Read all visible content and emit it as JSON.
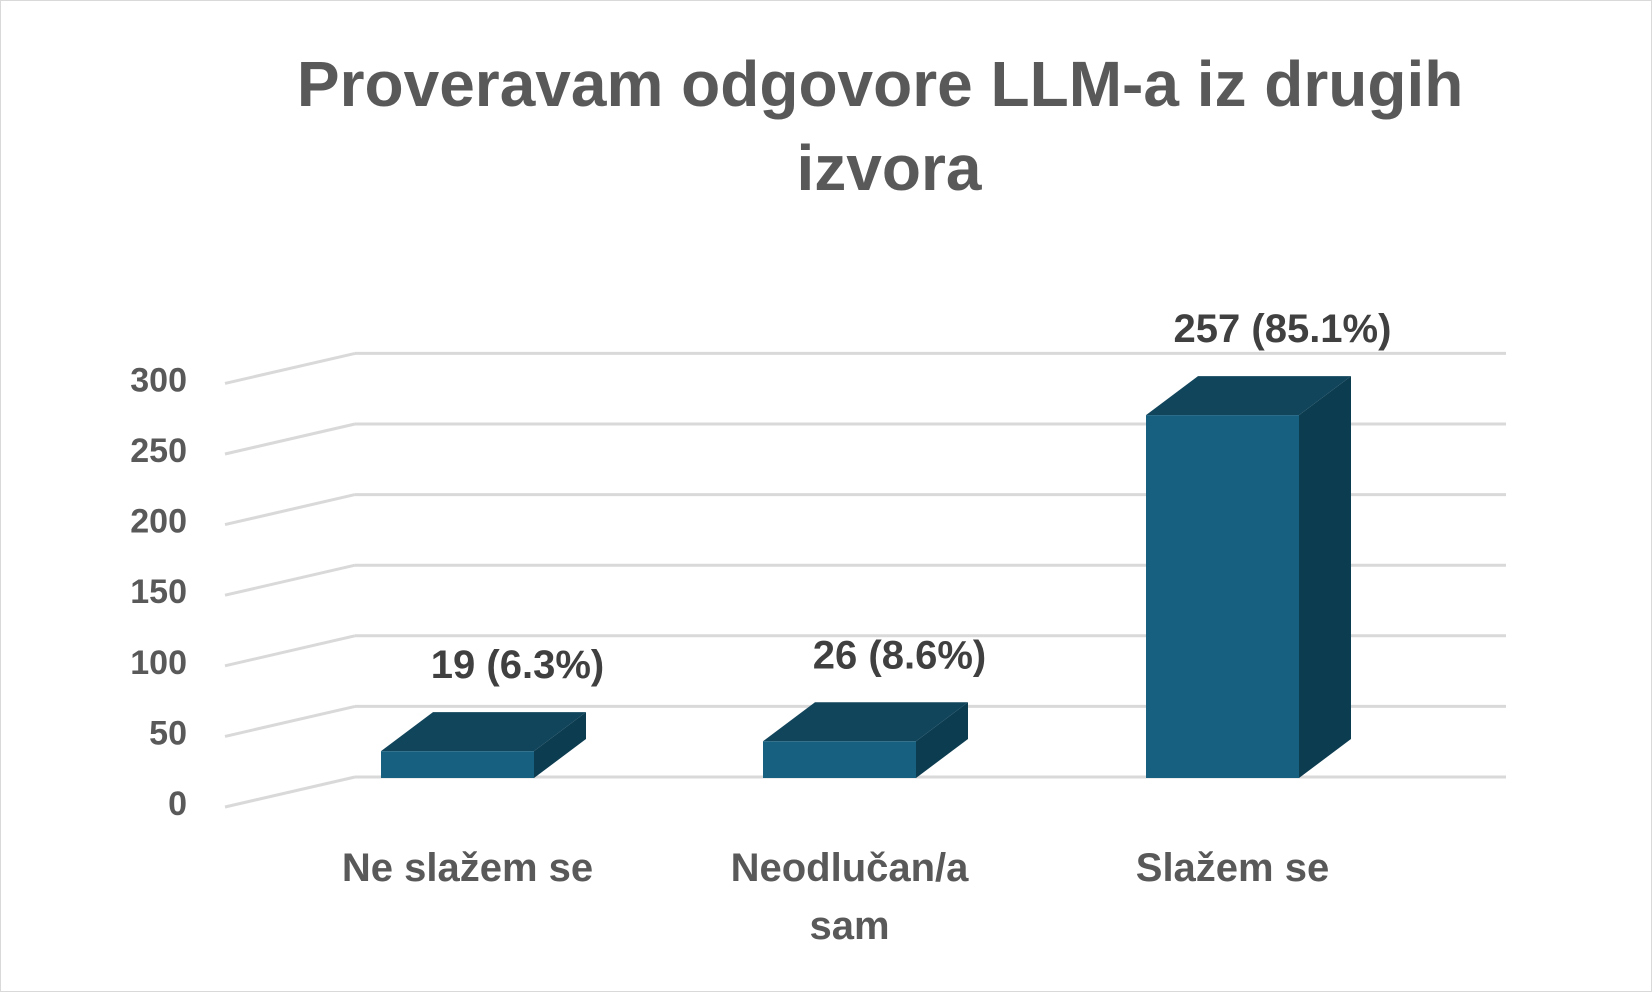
{
  "chart_data": {
    "type": "bar",
    "title": "Proveravam odgovore LLM-a iz drugih izvora",
    "title_lines": [
      "Proveravam odgovore LLM-a iz drugih",
      "izvora"
    ],
    "categories": [
      "Ne slažem se",
      "Neodlučan/a sam",
      "Slažem se"
    ],
    "category_lines": [
      [
        "Ne slažem se"
      ],
      [
        "Neodlučan/a",
        "sam"
      ],
      [
        "Slažem se"
      ]
    ],
    "values": [
      19,
      26,
      257
    ],
    "data_labels": [
      "19 (6.3%)",
      "26 (8.6%)",
      "257 (85.1%)"
    ],
    "xlabel": "",
    "ylabel": "",
    "ylim": [
      0,
      300
    ],
    "yticks": [
      0,
      50,
      100,
      150,
      200,
      250,
      300
    ],
    "grid": true,
    "style": "3d-column",
    "colors": {
      "bar_front": "#17607f",
      "bar_top": "#11455c",
      "bar_side": "#0c3c4f",
      "grid": "#d9d9d9",
      "text": "#595959",
      "data_label": "#404040"
    }
  }
}
